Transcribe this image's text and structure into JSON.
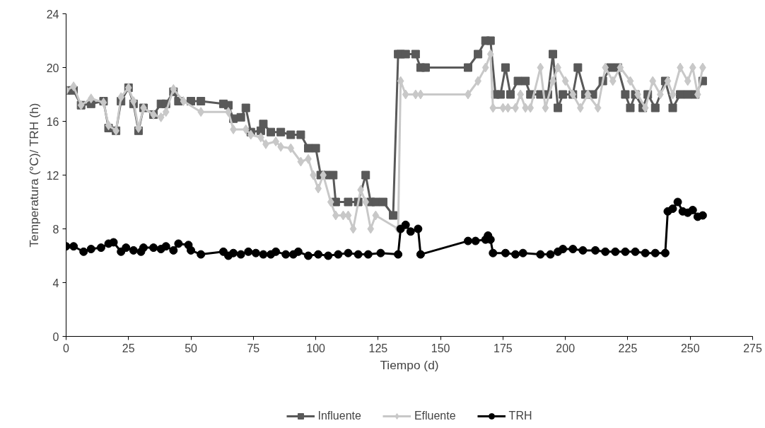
{
  "chart_data": {
    "type": "line",
    "xlabel": "Tiempo (d)",
    "ylabel": "Temperatura (°C)/ TRH (h)",
    "xlim": [
      0,
      275
    ],
    "xticks": [
      0,
      25,
      50,
      75,
      100,
      125,
      150,
      175,
      200,
      225,
      250,
      275
    ],
    "ylim": [
      0,
      24
    ],
    "yticks": [
      0,
      4,
      8,
      12,
      16,
      20,
      24
    ],
    "grid": false,
    "legend": "bottom",
    "line_style": "solid",
    "series": [
      {
        "name": "Influente",
        "color": "#595959",
        "marker": "square",
        "x": [
          0,
          3,
          6,
          10,
          15,
          17,
          20,
          22,
          25,
          27,
          29,
          31,
          35,
          38,
          40,
          43,
          45,
          50,
          54,
          63,
          65,
          67,
          70,
          72,
          74,
          78,
          79,
          82,
          86,
          90,
          94,
          97,
          100,
          102,
          104,
          107,
          108,
          113,
          117,
          120,
          122,
          124,
          127,
          131,
          133,
          134,
          136,
          140,
          142,
          144,
          161,
          165,
          168,
          170,
          172,
          174,
          176,
          178,
          181,
          184,
          186,
          190,
          193,
          195,
          197,
          199,
          203,
          205,
          208,
          211,
          215,
          218,
          221,
          224,
          226,
          228,
          231,
          233,
          236,
          240,
          243,
          246,
          249,
          252,
          255
        ],
        "values": [
          18.3,
          18.3,
          17.2,
          17.3,
          17.5,
          15.5,
          15.3,
          17.5,
          18.5,
          17.3,
          15.3,
          17,
          16.5,
          17.3,
          17.3,
          18.2,
          17.5,
          17.5,
          17.5,
          17.3,
          17.2,
          16.2,
          16.3,
          17,
          15.2,
          15.3,
          15.8,
          15.2,
          15.2,
          15,
          15,
          14,
          14,
          12,
          12,
          12,
          10,
          10,
          10,
          12,
          10,
          10,
          10,
          9,
          21,
          21,
          21,
          21,
          20,
          20,
          20,
          21,
          22,
          22,
          18,
          18,
          20,
          18,
          19,
          19,
          18,
          18,
          18,
          21,
          17,
          18,
          18,
          20,
          18,
          18,
          19,
          20,
          20,
          18,
          17,
          18,
          17,
          18,
          17,
          19,
          17,
          18,
          18,
          18,
          19
        ]
      },
      {
        "name": "Efluente",
        "color": "#c8c8c8",
        "marker": "diamond",
        "x": [
          0,
          3,
          6,
          10,
          15,
          17,
          20,
          22,
          25,
          27,
          29,
          31,
          35,
          38,
          40,
          43,
          47,
          54,
          65,
          67,
          72,
          74,
          78,
          80,
          84,
          86,
          90,
          94,
          97,
          99,
          101,
          103,
          106,
          108,
          111,
          113,
          115,
          118,
          120,
          122,
          124,
          133,
          134,
          136,
          140,
          142,
          161,
          165,
          168,
          170,
          171,
          175,
          177,
          180,
          182,
          184,
          186,
          190,
          192,
          195,
          197,
          200,
          203,
          206,
          209,
          213,
          216,
          219,
          222,
          226,
          229,
          232,
          235,
          238,
          241,
          243,
          246,
          249,
          251,
          253,
          255
        ],
        "values": [
          18.3,
          18.6,
          17.2,
          17.7,
          17.4,
          15.7,
          15.3,
          17.8,
          18.5,
          17.5,
          15.5,
          17,
          16.5,
          16.3,
          16.7,
          18.4,
          17.5,
          16.7,
          16.7,
          15.4,
          15.4,
          15,
          14.8,
          14.3,
          14.5,
          14.1,
          14,
          13,
          13.2,
          12,
          11,
          12,
          10,
          9,
          9,
          9,
          8,
          10.9,
          10,
          8,
          9,
          8,
          19,
          18,
          18,
          18,
          18,
          19,
          20,
          21,
          17,
          17,
          17,
          17,
          18,
          17,
          17,
          20,
          17,
          19,
          20,
          19,
          18,
          17,
          18,
          17,
          20,
          19,
          20,
          19,
          18,
          17,
          19,
          18,
          19,
          18,
          20,
          19,
          20,
          18,
          20
        ]
      },
      {
        "name": "TRH",
        "color": "#000000",
        "marker": "circle",
        "x": [
          0,
          3,
          7,
          10,
          14,
          17,
          19,
          22,
          24,
          27,
          30,
          31,
          35,
          38,
          40,
          43,
          45,
          49,
          50,
          54,
          63,
          65,
          67,
          70,
          73,
          76,
          79,
          82,
          84,
          88,
          91,
          93,
          97,
          101,
          105,
          109,
          113,
          117,
          121,
          126,
          133,
          134,
          136,
          138,
          141,
          142,
          161,
          164,
          168,
          169,
          170,
          171,
          176,
          180,
          183,
          190,
          194,
          197,
          199,
          203,
          207,
          212,
          216,
          220,
          224,
          228,
          232,
          236,
          240,
          241,
          243,
          245,
          247,
          249,
          251,
          253,
          255
        ],
        "values": [
          6.7,
          6.7,
          6.3,
          6.5,
          6.6,
          6.9,
          7,
          6.3,
          6.6,
          6.4,
          6.3,
          6.6,
          6.6,
          6.5,
          6.7,
          6.4,
          6.9,
          6.8,
          6.4,
          6.1,
          6.3,
          6,
          6.2,
          6.1,
          6.3,
          6.2,
          6.1,
          6.1,
          6.3,
          6.1,
          6.1,
          6.3,
          6,
          6.1,
          6,
          6.1,
          6.2,
          6.1,
          6.1,
          6.2,
          6.1,
          8,
          8.3,
          7.8,
          8,
          6.1,
          7.1,
          7.1,
          7.2,
          7.5,
          7.2,
          6.2,
          6.2,
          6.1,
          6.2,
          6.1,
          6.1,
          6.3,
          6.5,
          6.5,
          6.4,
          6.4,
          6.3,
          6.3,
          6.3,
          6.3,
          6.2,
          6.2,
          6.2,
          9.3,
          9.5,
          10,
          9.3,
          9.2,
          9.4,
          8.9,
          9
        ]
      }
    ]
  }
}
